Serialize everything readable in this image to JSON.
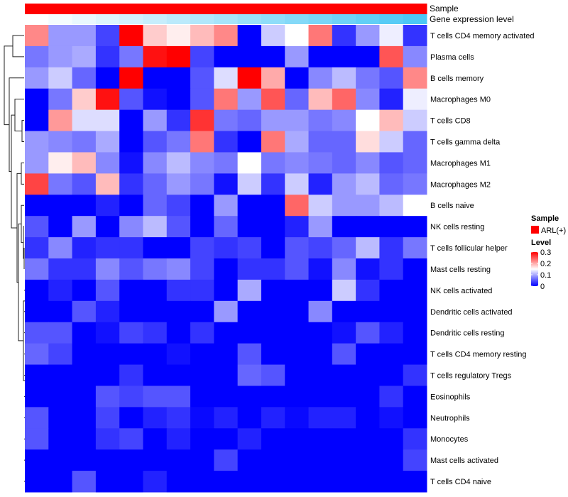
{
  "chart_data": {
    "type": "heatmap",
    "title": "",
    "value_range": [
      0,
      0.3
    ],
    "color_scale": {
      "low": "#0000ff",
      "mid": "#ffffff",
      "high": "#ff0000",
      "mid_value": 0.15
    },
    "annotations": {
      "sample": {
        "label": "Sample",
        "value": "ARL(+)",
        "color": "#ff0000"
      },
      "gene_expression": {
        "label": "Gene expression level",
        "low_color": "#ffffff",
        "high_color": "#4cc8f5"
      }
    },
    "legend": {
      "sample_title": "Sample",
      "sample_entry": "ARL(+)",
      "level_title": "Level",
      "level_ticks": [
        "0.3",
        "0.2",
        "0.1",
        "0"
      ],
      "level_tick_values": [
        0.3,
        0.2,
        0.1,
        0
      ],
      "placement": "right"
    },
    "n_columns": 17,
    "rows": [
      "T cells CD4 memory activated",
      "Plasma cells",
      "B cells memory",
      "Macrophages M0",
      "T cells CD8",
      "T cells gamma delta",
      "Macrophages M1",
      "Macrophages M2",
      "B cells naive",
      "NK cells resting",
      "T cells follicular helper",
      "Mast cells resting",
      "NK cells activated",
      "Dendritic cells activated",
      "Dendritic cells resting",
      "T cells CD4 memory resting",
      "T cells regulatory  Tregs",
      "Eosinophils",
      "Neutrophils",
      "Monocytes",
      "Mast cells activated",
      "T cells CD4 naive"
    ],
    "values": [
      [
        0.22,
        0.09,
        0.09,
        0.04,
        0.3,
        0.18,
        0.16,
        0.19,
        0.22,
        0,
        0.12,
        0.15,
        0.23,
        0.03,
        0.09,
        0.14,
        0.03
      ],
      [
        0.07,
        0.09,
        0.1,
        0.03,
        0.07,
        0.29,
        0.3,
        0.04,
        0,
        0,
        0,
        0.09,
        0,
        0,
        0,
        0.25,
        0.08
      ],
      [
        0.09,
        0.12,
        0.06,
        0,
        0.3,
        0,
        0,
        0.05,
        0.13,
        0.3,
        0.2,
        0,
        0.08,
        0.11,
        0.07,
        0.05,
        0.22
      ],
      [
        0,
        0.07,
        0.18,
        0.29,
        0.05,
        0.01,
        0,
        0.05,
        0.23,
        0.09,
        0.25,
        0.06,
        0.19,
        0.24,
        0.08,
        0.02,
        0.14
      ],
      [
        0,
        0.21,
        0.13,
        0.13,
        0,
        0.09,
        0.03,
        0.27,
        0.07,
        0.06,
        0.09,
        0.09,
        0.07,
        0.08,
        0.15,
        0.19,
        0.12
      ],
      [
        0.09,
        0.08,
        0.07,
        0.1,
        0,
        0.05,
        0.07,
        0.23,
        0.03,
        0,
        0.23,
        0.1,
        0.06,
        0.06,
        0.17,
        0.12,
        0.06
      ],
      [
        0.09,
        0.16,
        0.19,
        0.08,
        0.01,
        0.08,
        0.11,
        0.08,
        0.07,
        0.15,
        0.07,
        0.08,
        0.07,
        0.06,
        0.08,
        0.05,
        0.06
      ],
      [
        0.26,
        0.07,
        0.05,
        0.19,
        0.03,
        0.06,
        0.09,
        0.07,
        0.01,
        0.12,
        0.03,
        0.12,
        0.02,
        0.09,
        0.11,
        0.06,
        0.07
      ],
      [
        0,
        0,
        0,
        0.02,
        0,
        0.06,
        0.04,
        0,
        0.09,
        0,
        0,
        0.24,
        0.12,
        0.09,
        0.09,
        0.11,
        0.15
      ],
      [
        0.05,
        0,
        0.09,
        0,
        0.08,
        0.11,
        0.05,
        0,
        0.06,
        0,
        0,
        0.02,
        0.09,
        0,
        0,
        0,
        0
      ],
      [
        0.03,
        0.08,
        0.02,
        0.03,
        0.03,
        0,
        0,
        0.04,
        0.03,
        0.04,
        0,
        0.05,
        0.04,
        0.06,
        0.11,
        0.03,
        0.07
      ],
      [
        0.07,
        0.03,
        0.03,
        0.08,
        0.05,
        0.07,
        0.08,
        0.04,
        0,
        0.03,
        0.03,
        0.05,
        0.01,
        0.08,
        0.01,
        0.03,
        0
      ],
      [
        0,
        0.02,
        0,
        0.05,
        0,
        0,
        0.03,
        0.03,
        0,
        0.1,
        0,
        0,
        0,
        0.12,
        0.03,
        0,
        0
      ],
      [
        0,
        0,
        0.05,
        0.02,
        0,
        0,
        0,
        0,
        0.09,
        0,
        0,
        0,
        0.08,
        0,
        0,
        0,
        0
      ],
      [
        0.05,
        0.05,
        0,
        0.01,
        0.04,
        0.03,
        0,
        0.03,
        0,
        0,
        0,
        0,
        0,
        0.01,
        0.05,
        0.02,
        0
      ],
      [
        0.06,
        0.04,
        0,
        0,
        0,
        0,
        0.01,
        0,
        0,
        0.05,
        0,
        0,
        0,
        0.05,
        0,
        0,
        0
      ],
      [
        0,
        0,
        0,
        0,
        0.03,
        0,
        0,
        0,
        0,
        0.06,
        0.05,
        0,
        0,
        0,
        0,
        0,
        0.03
      ],
      [
        0,
        0,
        0,
        0.05,
        0.04,
        0.05,
        0.05,
        0,
        0,
        0,
        0,
        0,
        0,
        0,
        0,
        0.03,
        0
      ],
      [
        0.05,
        0,
        0,
        0.04,
        0,
        0.02,
        0.03,
        0.005,
        0.02,
        0,
        0.02,
        0.005,
        0.02,
        0.02,
        0,
        0.01,
        0
      ],
      [
        0.05,
        0,
        0,
        0.03,
        0.04,
        0,
        0.02,
        0,
        0,
        0.02,
        0,
        0,
        0,
        0,
        0,
        0,
        0.03
      ],
      [
        0,
        0,
        0,
        0,
        0,
        0,
        0,
        0,
        0.04,
        0,
        0,
        0,
        0,
        0,
        0,
        0,
        0.04
      ],
      [
        0,
        0,
        0.05,
        0,
        0,
        0.02,
        0,
        0,
        0,
        0,
        0,
        0,
        0,
        0,
        0,
        0,
        0
      ]
    ]
  }
}
